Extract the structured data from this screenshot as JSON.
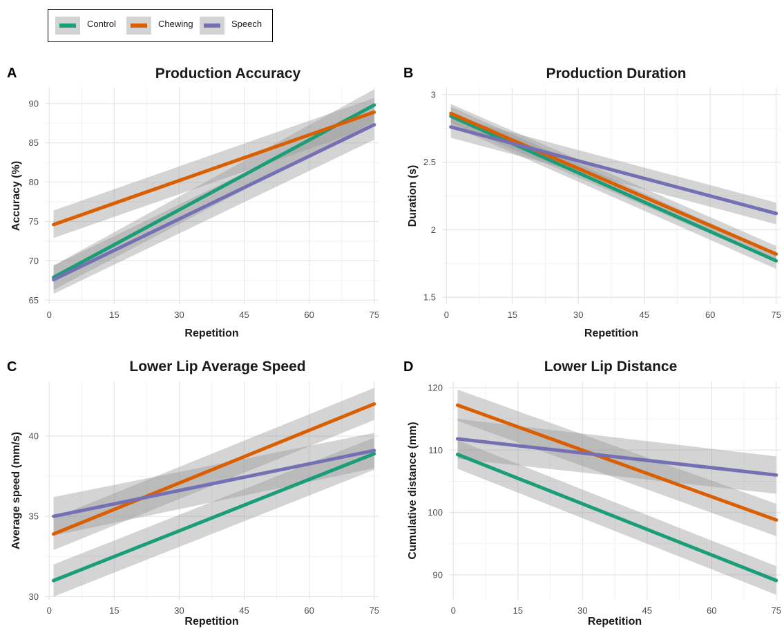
{
  "legend": {
    "items": [
      {
        "label": "Control",
        "color": "#1b9e77"
      },
      {
        "label": "Chewing",
        "color": "#d95f02"
      },
      {
        "label": "Speech",
        "color": "#7570b3"
      }
    ]
  },
  "chart_data": [
    {
      "panel": "A",
      "type": "line",
      "title": "Production Accuracy",
      "xlabel": "Repetition",
      "ylabel": "Accuracy (%)",
      "xlim": [
        -1,
        76
      ],
      "ylim": [
        64.5,
        92
      ],
      "xticks": [
        0,
        15,
        30,
        45,
        60,
        75
      ],
      "yticks": [
        65,
        70,
        75,
        80,
        85,
        90
      ],
      "grid": true,
      "series": [
        {
          "name": "Control",
          "x": [
            1,
            75
          ],
          "y": [
            67.9,
            89.8
          ],
          "ci_low": [
            66.3,
            87.7
          ],
          "ci_high": [
            69.4,
            91.8
          ]
        },
        {
          "name": "Chewing",
          "x": [
            1,
            75
          ],
          "y": [
            74.6,
            88.9
          ],
          "ci_low": [
            72.9,
            87.1
          ],
          "ci_high": [
            76.4,
            90.7
          ]
        },
        {
          "name": "Speech",
          "x": [
            1,
            75
          ],
          "y": [
            67.6,
            87.3
          ],
          "ci_low": [
            65.8,
            85.4
          ],
          "ci_high": [
            69.4,
            89.2
          ]
        }
      ]
    },
    {
      "panel": "B",
      "type": "line",
      "title": "Production Duration",
      "xlabel": "Repetition",
      "ylabel": "Duration (s)",
      "xlim": [
        -1,
        76
      ],
      "ylim": [
        1.45,
        3.05
      ],
      "xticks": [
        0,
        15,
        30,
        45,
        60,
        75
      ],
      "yticks": [
        1.5,
        2.0,
        2.5,
        3.0
      ],
      "grid": true,
      "series": [
        {
          "name": "Control",
          "x": [
            1,
            75
          ],
          "y": [
            2.84,
            1.77
          ],
          "ci_low": [
            2.77,
            1.71
          ],
          "ci_high": [
            2.91,
            1.83
          ]
        },
        {
          "name": "Chewing",
          "x": [
            1,
            75
          ],
          "y": [
            2.86,
            1.82
          ],
          "ci_low": [
            2.79,
            1.76
          ],
          "ci_high": [
            2.93,
            1.88
          ]
        },
        {
          "name": "Speech",
          "x": [
            1,
            75
          ],
          "y": [
            2.76,
            2.12
          ],
          "ci_low": [
            2.68,
            2.04
          ],
          "ci_high": [
            2.84,
            2.2
          ]
        }
      ]
    },
    {
      "panel": "C",
      "type": "line",
      "title": "Lower Lip Average Speed",
      "xlabel": "Repetition",
      "ylabel": "Average speed (mm/s)",
      "xlim": [
        -1,
        76
      ],
      "ylim": [
        29.8,
        43.4
      ],
      "xticks": [
        0,
        15,
        30,
        45,
        60,
        75
      ],
      "yticks": [
        30,
        35,
        40
      ],
      "grid": true,
      "series": [
        {
          "name": "Control",
          "x": [
            1,
            75
          ],
          "y": [
            31.0,
            38.9
          ],
          "ci_low": [
            30.0,
            37.9
          ],
          "ci_high": [
            32.0,
            39.9
          ]
        },
        {
          "name": "Chewing",
          "x": [
            1,
            75
          ],
          "y": [
            33.9,
            42.0
          ],
          "ci_low": [
            32.9,
            41.0
          ],
          "ci_high": [
            34.9,
            43.0
          ]
        },
        {
          "name": "Speech",
          "x": [
            1,
            75
          ],
          "y": [
            35.0,
            39.1
          ],
          "ci_low": [
            33.8,
            38.0
          ],
          "ci_high": [
            36.2,
            40.2
          ]
        }
      ]
    },
    {
      "panel": "D",
      "type": "line",
      "title": "Lower Lip Distance",
      "xlabel": "Repetition",
      "ylabel": "Cumulative distance (mm)",
      "xlim": [
        -1,
        76
      ],
      "ylim": [
        86,
        121
      ],
      "xticks": [
        0,
        15,
        30,
        45,
        60,
        75
      ],
      "yticks": [
        90,
        100,
        110,
        120
      ],
      "grid": true,
      "series": [
        {
          "name": "Control",
          "x": [
            1,
            75
          ],
          "y": [
            109.3,
            89.1
          ],
          "ci_low": [
            107.0,
            86.8
          ],
          "ci_high": [
            111.6,
            91.4
          ]
        },
        {
          "name": "Chewing",
          "x": [
            1,
            75
          ],
          "y": [
            117.2,
            98.8
          ],
          "ci_low": [
            114.7,
            96.2
          ],
          "ci_high": [
            119.7,
            101.4
          ]
        },
        {
          "name": "Speech",
          "x": [
            1,
            75
          ],
          "y": [
            111.8,
            106.0
          ],
          "ci_low": [
            108.6,
            103.0
          ],
          "ci_high": [
            115.0,
            109.0
          ]
        }
      ]
    }
  ]
}
